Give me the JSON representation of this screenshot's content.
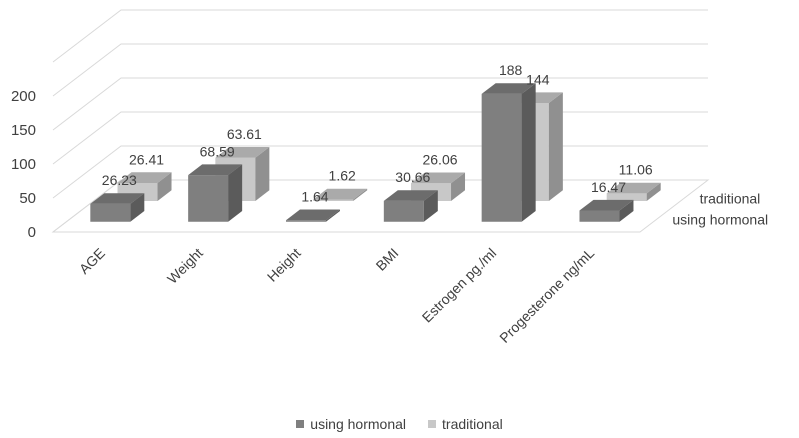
{
  "chart_data": {
    "type": "bar",
    "categories": [
      "AGE",
      "Weight",
      "Height",
      "BMI",
      "Estrogen pg./ml",
      "Progesterone ng/mL"
    ],
    "series": [
      {
        "name": "using hormonal",
        "values": [
          26.23,
          68.59,
          1.64,
          30.66,
          188,
          16.47
        ],
        "color": "#7f7f7f"
      },
      {
        "name": "traditional",
        "values": [
          26.41,
          63.61,
          1.62,
          26.06,
          144,
          11.06
        ],
        "color": "#c8c8c8"
      }
    ],
    "yticks": [
      "0",
      "50",
      "100",
      "150",
      "200"
    ],
    "ylim": [
      0,
      250
    ],
    "grid": true,
    "legend_position": "bottom",
    "style": "3d-column"
  }
}
